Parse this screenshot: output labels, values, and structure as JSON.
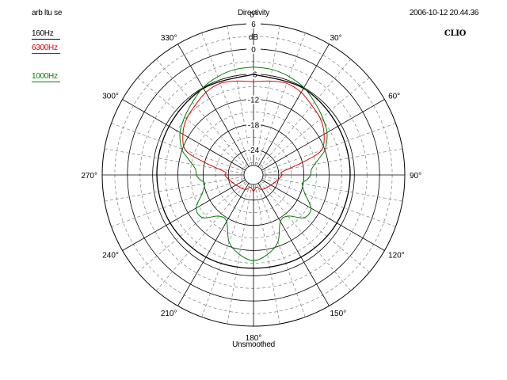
{
  "header": {
    "left": "arb ltu se",
    "title": "Directivity",
    "right": "2006-10-12 20.44.36"
  },
  "brand": "CLIO",
  "footer": "Unsmoothed",
  "colors": {
    "background": "#ffffff",
    "grid_solid": "#000000",
    "grid_dashed": "#808080",
    "series_160": "#000000",
    "series_6300": "#e00000",
    "series_1000": "#008000"
  },
  "chart_data": {
    "type": "polar",
    "title": "Directivity",
    "radial_unit": "dB",
    "radial_range": [
      -30,
      6
    ],
    "radial_ticks": [
      "6",
      "0",
      "-6",
      "-12",
      "-18",
      "-24"
    ],
    "radial_tick_values": [
      6,
      0,
      -6,
      -12,
      -18,
      -24
    ],
    "angular_ticks": [
      "0°",
      "30°",
      "60°",
      "90°",
      "120°",
      "150°",
      "180°",
      "210°",
      "240°",
      "270°",
      "300°",
      "330°"
    ],
    "angular_tick_values": [
      0,
      30,
      60,
      90,
      120,
      150,
      180,
      210,
      240,
      270,
      300,
      330
    ],
    "angle_direction": "clockwise",
    "zero_angle": "top",
    "grid": true,
    "legend_placement": "top-left",
    "series": [
      {
        "name": "160Hz",
        "color": "#000000",
        "angles": [
          0,
          30,
          60,
          90,
          120,
          150,
          180,
          210,
          240,
          270,
          300,
          330,
          360
        ],
        "values": [
          -6,
          -6.2,
          -6.8,
          -7,
          -7.1,
          -7.4,
          -7.8,
          -7.4,
          -7.1,
          -7,
          -6.8,
          -6.2,
          -6
        ]
      },
      {
        "name": "6300Hz",
        "color": "#e00000",
        "angles": [
          0,
          10,
          20,
          30,
          40,
          50,
          60,
          70,
          75,
          80,
          85,
          90,
          100,
          120,
          150,
          165,
          180,
          195,
          210,
          240,
          260,
          270,
          275,
          280,
          285,
          290,
          300,
          310,
          320,
          330,
          340,
          350,
          360
        ],
        "values": [
          -7.8,
          -7.3,
          -6.8,
          -7.3,
          -8.4,
          -9.2,
          -10.6,
          -12.8,
          -17.4,
          -21.5,
          -23.4,
          -23.2,
          -24,
          -25.2,
          -26,
          -27,
          -26.2,
          -27,
          -26,
          -25.2,
          -24,
          -23.2,
          -23.4,
          -21.5,
          -17.4,
          -12.8,
          -10.6,
          -9.2,
          -8.4,
          -7.3,
          -6.8,
          -7.3,
          -7.8
        ]
      },
      {
        "name": "1000Hz",
        "color": "#008000",
        "angles": [
          0,
          10,
          20,
          30,
          40,
          50,
          60,
          70,
          75,
          80,
          85,
          90,
          95,
          100,
          110,
          120,
          130,
          140,
          150,
          160,
          170,
          180,
          190,
          200,
          210,
          220,
          230,
          240,
          250,
          260,
          265,
          270,
          275,
          280,
          285,
          290,
          300,
          310,
          320,
          330,
          340,
          350,
          360
        ],
        "values": [
          -4.3,
          -4.5,
          -5.1,
          -6,
          -7.4,
          -8.6,
          -9.8,
          -11.8,
          -13.6,
          -15.2,
          -16.2,
          -16.4,
          -17.2,
          -18.2,
          -17,
          -14.2,
          -14.2,
          -17.2,
          -17.2,
          -13,
          -10.8,
          -9.6,
          -10.8,
          -13,
          -17.2,
          -17.2,
          -14.2,
          -14.2,
          -17,
          -18.2,
          -17.2,
          -16.4,
          -16.2,
          -15.2,
          -13.6,
          -11.8,
          -9.8,
          -8.6,
          -7.4,
          -6,
          -5.1,
          -4.5,
          -4.3
        ]
      }
    ]
  }
}
